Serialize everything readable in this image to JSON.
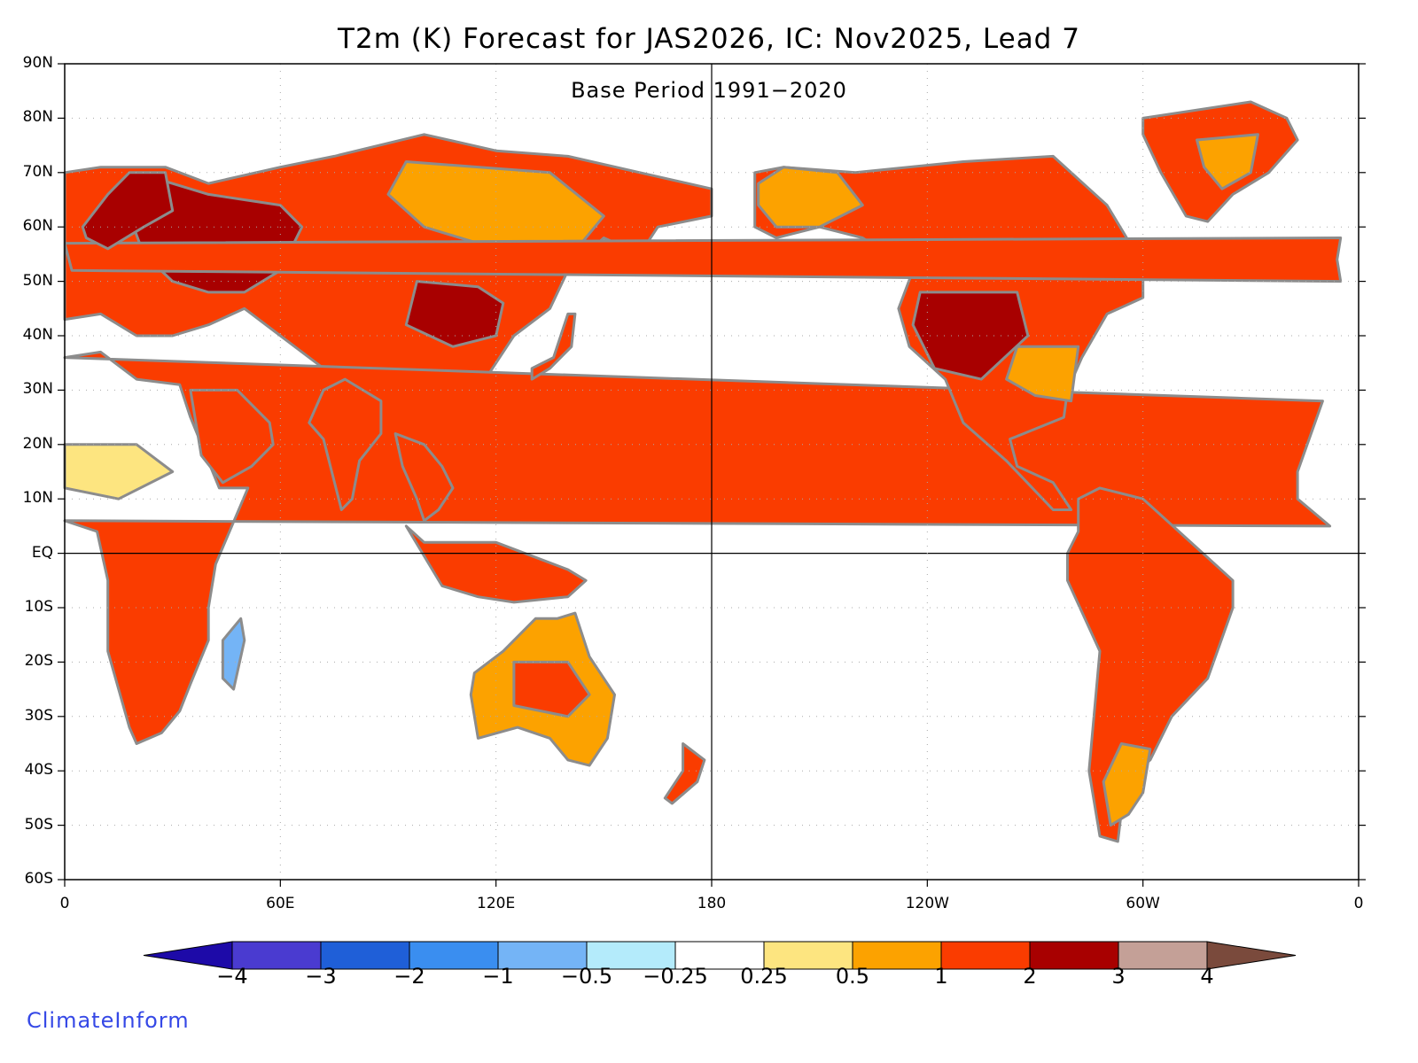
{
  "title": "T2m (K) Forecast for JAS2026, IC: Nov2025, Lead 7",
  "subtitle": "Base Period 1991−2020",
  "brand": "ClimateInform",
  "map": {
    "lon_range": [
      0,
      360
    ],
    "lat_range": [
      -60,
      90
    ],
    "grid": "dotted",
    "lat_labels": [
      "90N",
      "80N",
      "70N",
      "60N",
      "50N",
      "40N",
      "30N",
      "20N",
      "10N",
      "EQ",
      "10S",
      "20S",
      "30S",
      "40S",
      "50S",
      "60S"
    ],
    "lat_values": [
      90,
      80,
      70,
      60,
      50,
      40,
      30,
      20,
      10,
      0,
      -10,
      -20,
      -30,
      -40,
      -50,
      -60
    ],
    "lon_labels": [
      "0",
      "60E",
      "120E",
      "180",
      "120W",
      "60W",
      "0"
    ],
    "lon_values": [
      0,
      60,
      120,
      180,
      240,
      300,
      360
    ],
    "land_color": "#8c8c8c",
    "lake_color": "#000000",
    "land_fills": [
      {
        "name": "eurasia-north",
        "level": "1-2",
        "pts": [
          [
            0,
            70
          ],
          [
            10,
            71
          ],
          [
            28,
            71
          ],
          [
            40,
            68
          ],
          [
            60,
            71
          ],
          [
            75,
            73
          ],
          [
            100,
            77
          ],
          [
            120,
            74
          ],
          [
            140,
            73
          ],
          [
            160,
            70
          ],
          [
            180,
            67
          ],
          [
            180,
            62
          ],
          [
            165,
            60
          ],
          [
            160,
            55
          ],
          [
            150,
            58
          ],
          [
            140,
            52
          ],
          [
            135,
            45
          ],
          [
            125,
            40
          ],
          [
            120,
            35
          ],
          [
            110,
            25
          ],
          [
            100,
            22
          ],
          [
            90,
            25
          ],
          [
            80,
            30
          ],
          [
            70,
            35
          ],
          [
            60,
            40
          ],
          [
            50,
            45
          ],
          [
            40,
            42
          ],
          [
            30,
            40
          ],
          [
            20,
            40
          ],
          [
            10,
            44
          ],
          [
            0,
            43
          ]
        ]
      },
      {
        "name": "europe-russia-core",
        "level": "2-3",
        "pts": [
          [
            20,
            70
          ],
          [
            40,
            66
          ],
          [
            60,
            64
          ],
          [
            66,
            60
          ],
          [
            60,
            52
          ],
          [
            50,
            48
          ],
          [
            40,
            48
          ],
          [
            30,
            50
          ],
          [
            22,
            55
          ],
          [
            18,
            62
          ]
        ]
      },
      {
        "name": "china-core",
        "level": "2-3",
        "pts": [
          [
            98,
            50
          ],
          [
            115,
            49
          ],
          [
            122,
            46
          ],
          [
            120,
            40
          ],
          [
            108,
            38
          ],
          [
            95,
            42
          ]
        ]
      },
      {
        "name": "siberia-mid",
        "level": "0.5-1",
        "pts": [
          [
            95,
            72
          ],
          [
            135,
            70
          ],
          [
            150,
            62
          ],
          [
            140,
            54
          ],
          [
            120,
            56
          ],
          [
            100,
            60
          ],
          [
            90,
            66
          ]
        ]
      },
      {
        "name": "africa",
        "level": "1-2",
        "pts": [
          [
            -17,
            15
          ],
          [
            -10,
            28
          ],
          [
            0,
            36
          ],
          [
            10,
            37
          ],
          [
            20,
            32
          ],
          [
            32,
            31
          ],
          [
            35,
            25
          ],
          [
            43,
            12
          ],
          [
            51,
            12
          ],
          [
            42,
            -2
          ],
          [
            40,
            -10
          ],
          [
            40,
            -16
          ],
          [
            35,
            -24
          ],
          [
            32,
            -29
          ],
          [
            27,
            -33
          ],
          [
            20,
            -35
          ],
          [
            18,
            -32
          ],
          [
            12,
            -18
          ],
          [
            12,
            -5
          ],
          [
            9,
            4
          ],
          [
            0,
            6
          ],
          [
            -8,
            5
          ],
          [
            -17,
            10
          ]
        ]
      },
      {
        "name": "sahel-band",
        "level": "0.25-0.5",
        "pts": [
          [
            0,
            20
          ],
          [
            20,
            20
          ],
          [
            30,
            15
          ],
          [
            15,
            10
          ],
          [
            0,
            12
          ]
        ]
      },
      {
        "name": "arabia",
        "level": "1-2",
        "pts": [
          [
            35,
            30
          ],
          [
            48,
            30
          ],
          [
            57,
            24
          ],
          [
            58,
            20
          ],
          [
            52,
            16
          ],
          [
            44,
            13
          ],
          [
            38,
            18
          ]
        ]
      },
      {
        "name": "india",
        "level": "1-2",
        "pts": [
          [
            68,
            24
          ],
          [
            72,
            21
          ],
          [
            77,
            8
          ],
          [
            80,
            10
          ],
          [
            82,
            17
          ],
          [
            88,
            22
          ],
          [
            88,
            28
          ],
          [
            78,
            32
          ],
          [
            72,
            30
          ]
        ]
      },
      {
        "name": "se-asia",
        "level": "1-2",
        "pts": [
          [
            92,
            22
          ],
          [
            100,
            20
          ],
          [
            105,
            16
          ],
          [
            108,
            12
          ],
          [
            104,
            8
          ],
          [
            100,
            6
          ],
          [
            98,
            10
          ],
          [
            94,
            16
          ]
        ]
      },
      {
        "name": "australia",
        "level": "0.5-1",
        "pts": [
          [
            114,
            -22
          ],
          [
            122,
            -18
          ],
          [
            131,
            -12
          ],
          [
            137,
            -12
          ],
          [
            142,
            -11
          ],
          [
            146,
            -19
          ],
          [
            153,
            -26
          ],
          [
            151,
            -34
          ],
          [
            146,
            -39
          ],
          [
            140,
            -38
          ],
          [
            135,
            -34
          ],
          [
            126,
            -32
          ],
          [
            115,
            -34
          ],
          [
            113,
            -26
          ]
        ]
      },
      {
        "name": "australia-inner",
        "level": "1-2",
        "pts": [
          [
            125,
            -20
          ],
          [
            140,
            -20
          ],
          [
            146,
            -26
          ],
          [
            140,
            -30
          ],
          [
            125,
            -28
          ]
        ]
      },
      {
        "name": "north-america",
        "level": "1-2",
        "pts": [
          [
            192,
            70
          ],
          [
            200,
            71
          ],
          [
            220,
            70
          ],
          [
            250,
            72
          ],
          [
            275,
            73
          ],
          [
            290,
            64
          ],
          [
            300,
            53
          ],
          [
            300,
            47
          ],
          [
            290,
            44
          ],
          [
            283,
            36
          ],
          [
            279,
            30
          ],
          [
            278,
            25
          ],
          [
            263,
            21
          ],
          [
            265,
            16
          ],
          [
            275,
            13
          ],
          [
            280,
            8
          ],
          [
            275,
            8
          ],
          [
            262,
            17
          ],
          [
            250,
            24
          ],
          [
            245,
            32
          ],
          [
            235,
            38
          ],
          [
            232,
            45
          ],
          [
            236,
            52
          ],
          [
            222,
            58
          ],
          [
            210,
            60
          ],
          [
            198,
            58
          ],
          [
            192,
            60
          ]
        ]
      },
      {
        "name": "alaska",
        "level": "0.5-1",
        "pts": [
          [
            193,
            68
          ],
          [
            200,
            71
          ],
          [
            215,
            70
          ],
          [
            222,
            64
          ],
          [
            210,
            60
          ],
          [
            198,
            60
          ],
          [
            193,
            64
          ]
        ]
      },
      {
        "name": "us-central",
        "level": "2-3",
        "pts": [
          [
            238,
            48
          ],
          [
            265,
            48
          ],
          [
            268,
            40
          ],
          [
            255,
            32
          ],
          [
            242,
            34
          ],
          [
            236,
            42
          ]
        ]
      },
      {
        "name": "us-southeast",
        "level": "0.5-1",
        "pts": [
          [
            265,
            38
          ],
          [
            282,
            38
          ],
          [
            280,
            28
          ],
          [
            270,
            29
          ],
          [
            262,
            32
          ]
        ]
      },
      {
        "name": "south-america",
        "level": "1-2",
        "pts": [
          [
            282,
            10
          ],
          [
            288,
            12
          ],
          [
            300,
            10
          ],
          [
            310,
            4
          ],
          [
            325,
            -5
          ],
          [
            325,
            -10
          ],
          [
            318,
            -23
          ],
          [
            308,
            -30
          ],
          [
            302,
            -38
          ],
          [
            295,
            -42
          ],
          [
            293,
            -53
          ],
          [
            288,
            -52
          ],
          [
            285,
            -40
          ],
          [
            288,
            -18
          ],
          [
            279,
            -5
          ],
          [
            279,
            0
          ],
          [
            282,
            4
          ]
        ]
      },
      {
        "name": "patagonia",
        "level": "0.5-1",
        "pts": [
          [
            294,
            -35
          ],
          [
            302,
            -36
          ],
          [
            300,
            -44
          ],
          [
            296,
            -48
          ],
          [
            291,
            -50
          ],
          [
            289,
            -42
          ]
        ]
      },
      {
        "name": "greenland",
        "level": "1-2",
        "pts": [
          [
            300,
            80
          ],
          [
            330,
            83
          ],
          [
            340,
            80
          ],
          [
            343,
            76
          ],
          [
            335,
            70
          ],
          [
            325,
            66
          ],
          [
            318,
            61
          ],
          [
            312,
            62
          ],
          [
            305,
            70
          ],
          [
            300,
            77
          ]
        ]
      },
      {
        "name": "greenland-inner",
        "level": "0.5-1",
        "pts": [
          [
            315,
            76
          ],
          [
            332,
            77
          ],
          [
            330,
            70
          ],
          [
            322,
            67
          ],
          [
            317,
            71
          ]
        ]
      },
      {
        "name": "madagascar",
        "level": "-1--0.5",
        "pts": [
          [
            44,
            -16
          ],
          [
            49,
            -12
          ],
          [
            50,
            -16
          ],
          [
            47,
            -25
          ],
          [
            44,
            -23
          ]
        ]
      },
      {
        "name": "new-zealand",
        "level": "1-2",
        "pts": [
          [
            172,
            -35
          ],
          [
            178,
            -38
          ],
          [
            176,
            -42
          ],
          [
            169,
            -46
          ],
          [
            167,
            -45
          ],
          [
            172,
            -40
          ]
        ]
      },
      {
        "name": "japan",
        "level": "1-2",
        "pts": [
          [
            130,
            32
          ],
          [
            135,
            34
          ],
          [
            141,
            38
          ],
          [
            142,
            44
          ],
          [
            140,
            44
          ],
          [
            136,
            36
          ],
          [
            130,
            34
          ]
        ]
      },
      {
        "name": "uk",
        "level": "1-2",
        "pts": [
          [
            -5,
            50
          ],
          [
            2,
            52
          ],
          [
            0,
            57
          ],
          [
            -5,
            58
          ],
          [
            -6,
            54
          ]
        ]
      },
      {
        "name": "indonesia",
        "level": "1-2",
        "pts": [
          [
            95,
            5
          ],
          [
            105,
            -6
          ],
          [
            115,
            -8
          ],
          [
            125,
            -9
          ],
          [
            140,
            -8
          ],
          [
            145,
            -5
          ],
          [
            140,
            -3
          ],
          [
            120,
            2
          ],
          [
            110,
            2
          ],
          [
            100,
            2
          ]
        ]
      },
      {
        "name": "scandinavia",
        "level": "2-3",
        "pts": [
          [
            5,
            60
          ],
          [
            12,
            66
          ],
          [
            18,
            70
          ],
          [
            28,
            70
          ],
          [
            30,
            63
          ],
          [
            22,
            60
          ],
          [
            12,
            56
          ],
          [
            6,
            58
          ]
        ]
      }
    ],
    "legend_caption": ""
  },
  "colorbar": {
    "labels": [
      "−4",
      "−3",
      "−2",
      "−1",
      "−0.5",
      "−0.25",
      "0.25",
      "0.5",
      "1",
      "2",
      "3",
      "4"
    ],
    "colors": [
      "#4a3bd0",
      "#1f5fd8",
      "#3a8ef0",
      "#74b4f6",
      "#b4ebfb",
      "#ffffff",
      "#fde580",
      "#fca200",
      "#fa3c00",
      "#a80000",
      "#c4a097"
    ],
    "under_color": "#1d0aa8",
    "over_color": "#7a4a3c"
  }
}
